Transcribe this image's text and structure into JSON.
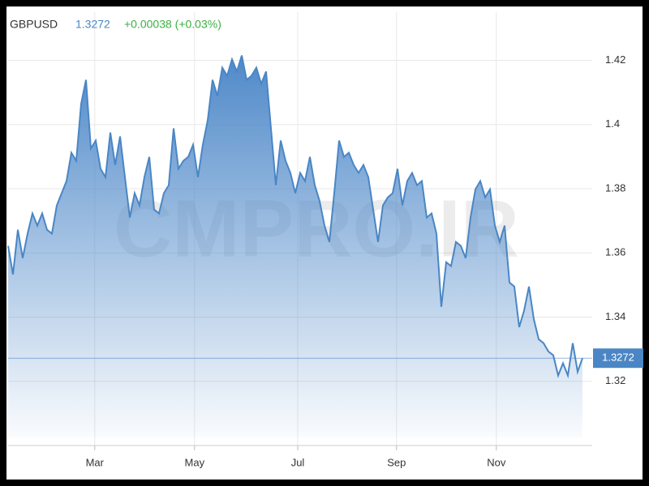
{
  "chart_data": {
    "type": "area",
    "symbol": "GBPUSD",
    "price": "1.3272",
    "change": "+0.00038 (+0.03%)",
    "watermark": "CMPRO.IR",
    "series": [
      {
        "name": "GBPUSD",
        "color": "#4a86c5",
        "values": [
          1.3622,
          1.3533,
          1.3672,
          1.3584,
          1.366,
          1.3723,
          1.3685,
          1.3723,
          1.3672,
          1.366,
          1.3748,
          1.3786,
          1.3824,
          1.3912,
          1.3887,
          1.4064,
          1.4139,
          1.3925,
          1.395,
          1.3862,
          1.3836,
          1.3975,
          1.3874,
          1.3963,
          1.3836,
          1.371,
          1.3786,
          1.3748,
          1.3836,
          1.3899,
          1.3735,
          1.3723,
          1.3786,
          1.3811,
          1.3988,
          1.3862,
          1.3887,
          1.3899,
          1.3937,
          1.3836,
          1.3937,
          1.4013,
          1.4139,
          1.4089,
          1.4177,
          1.4152,
          1.4203,
          1.4165,
          1.4215,
          1.4139,
          1.4152,
          1.4177,
          1.4127,
          1.4165,
          1.3988,
          1.3811,
          1.395,
          1.3887,
          1.3849,
          1.3786,
          1.3849,
          1.3824,
          1.3899,
          1.3811,
          1.3761,
          1.3685,
          1.3634,
          1.3786,
          1.395,
          1.3899,
          1.3912,
          1.3874,
          1.3849,
          1.3874,
          1.3836,
          1.3735,
          1.3634,
          1.3748,
          1.3773,
          1.3786,
          1.3862,
          1.3748,
          1.3824,
          1.3849,
          1.3811,
          1.3824,
          1.371,
          1.3723,
          1.366,
          1.3432,
          1.3571,
          1.3559,
          1.3634,
          1.3622,
          1.3584,
          1.371,
          1.3798,
          1.3824,
          1.3773,
          1.3798,
          1.3685,
          1.3634,
          1.3685,
          1.3508,
          1.3495,
          1.3369,
          1.342,
          1.3495,
          1.3394,
          1.3331,
          1.3319,
          1.3293,
          1.3281,
          1.3218,
          1.3256,
          1.3218,
          1.3319,
          1.323,
          1.3272
        ]
      }
    ],
    "xlim": [
      0,
      118
    ],
    "xticks": [
      {
        "value": 17.8,
        "label": "Mar"
      },
      {
        "value": 38.3,
        "label": "May"
      },
      {
        "value": 59.5,
        "label": "Jul"
      },
      {
        "value": 79.8,
        "label": "Sep"
      },
      {
        "value": 100.3,
        "label": "Nov"
      }
    ],
    "ylim": [
      1.3,
      1.435
    ],
    "yticks": [
      1.32,
      1.34,
      1.36,
      1.38,
      1.4,
      1.42
    ],
    "grid": true
  }
}
